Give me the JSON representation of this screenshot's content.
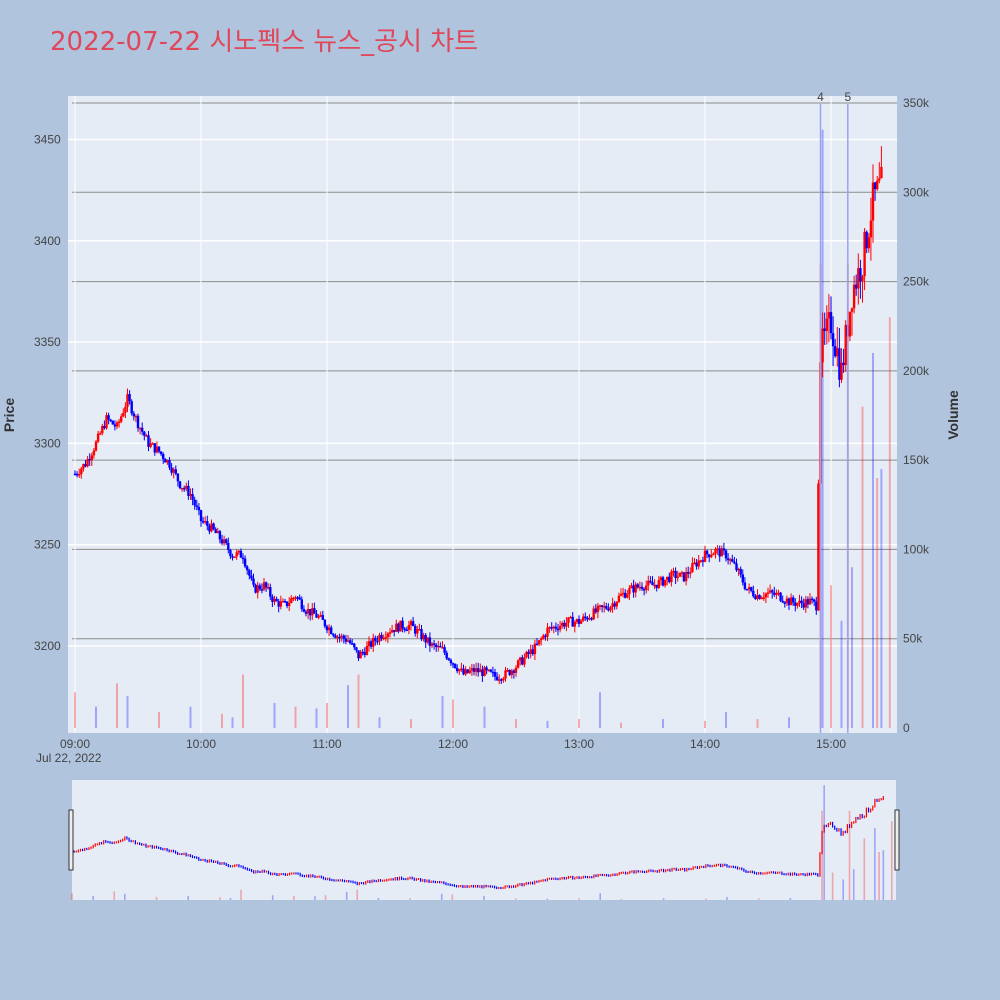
{
  "chart_data": {
    "type": "candlestick",
    "title": "2022-07-22 시노펙스 뉴스_공시 차트",
    "ylabel": "Price",
    "y2label": "Volume",
    "date_label": "Jul 22, 2022",
    "x_ticks": [
      "09:00",
      "10:00",
      "11:00",
      "12:00",
      "13:00",
      "14:00",
      "15:00"
    ],
    "y_ticks": [
      3200,
      3250,
      3300,
      3350,
      3400,
      3450
    ],
    "y2_ticks": [
      "0",
      "50k",
      "100k",
      "150k",
      "200k",
      "250k",
      "300k",
      "350k"
    ],
    "ylim": [
      3150,
      3470
    ],
    "y2lim": [
      0,
      350000
    ],
    "news_markers": [
      {
        "label": "4",
        "time": "14:55"
      },
      {
        "label": "5",
        "time": "15:08"
      }
    ],
    "up_color": "#ff0000",
    "down_color": "#0000ff",
    "price_path": [
      [
        "09:00",
        3285
      ],
      [
        "09:05",
        3290
      ],
      [
        "09:10",
        3300
      ],
      [
        "09:15",
        3312
      ],
      [
        "09:20",
        3308
      ],
      [
        "09:25",
        3322
      ],
      [
        "09:30",
        3310
      ],
      [
        "09:35",
        3300
      ],
      [
        "09:40",
        3296
      ],
      [
        "09:45",
        3290
      ],
      [
        "09:50",
        3280
      ],
      [
        "09:55",
        3275
      ],
      [
        "10:00",
        3262
      ],
      [
        "10:05",
        3258
      ],
      [
        "10:10",
        3252
      ],
      [
        "10:15",
        3245
      ],
      [
        "10:20",
        3245
      ],
      [
        "10:25",
        3228
      ],
      [
        "10:30",
        3230
      ],
      [
        "10:35",
        3222
      ],
      [
        "10:40",
        3220
      ],
      [
        "10:45",
        3225
      ],
      [
        "10:50",
        3218
      ],
      [
        "10:55",
        3215
      ],
      [
        "11:00",
        3210
      ],
      [
        "11:05",
        3205
      ],
      [
        "11:10",
        3203
      ],
      [
        "11:15",
        3195
      ],
      [
        "11:20",
        3200
      ],
      [
        "11:25",
        3205
      ],
      [
        "11:30",
        3208
      ],
      [
        "11:35",
        3210
      ],
      [
        "11:40",
        3210
      ],
      [
        "11:45",
        3205
      ],
      [
        "11:50",
        3200
      ],
      [
        "11:55",
        3198
      ],
      [
        "12:00",
        3192
      ],
      [
        "12:05",
        3186
      ],
      [
        "12:10",
        3188
      ],
      [
        "12:15",
        3187
      ],
      [
        "12:20",
        3185
      ],
      [
        "12:25",
        3186
      ],
      [
        "12:30",
        3190
      ],
      [
        "12:35",
        3195
      ],
      [
        "12:40",
        3200
      ],
      [
        "12:45",
        3208
      ],
      [
        "12:50",
        3210
      ],
      [
        "12:55",
        3212
      ],
      [
        "13:00",
        3212
      ],
      [
        "13:05",
        3215
      ],
      [
        "13:10",
        3218
      ],
      [
        "13:15",
        3220
      ],
      [
        "13:20",
        3225
      ],
      [
        "13:25",
        3228
      ],
      [
        "13:30",
        3230
      ],
      [
        "13:35",
        3230
      ],
      [
        "13:40",
        3232
      ],
      [
        "13:45",
        3235
      ],
      [
        "13:50",
        3234
      ],
      [
        "13:55",
        3240
      ],
      [
        "14:00",
        3245
      ],
      [
        "14:05",
        3247
      ],
      [
        "14:10",
        3245
      ],
      [
        "14:15",
        3238
      ],
      [
        "14:20",
        3228
      ],
      [
        "14:25",
        3225
      ],
      [
        "14:30",
        3226
      ],
      [
        "14:35",
        3225
      ],
      [
        "14:40",
        3222
      ],
      [
        "14:45",
        3221
      ],
      [
        "14:50",
        3222
      ],
      [
        "14:53",
        3220
      ],
      [
        "14:55",
        3345
      ],
      [
        "15:00",
        3360
      ],
      [
        "15:05",
        3335
      ],
      [
        "15:10",
        3375
      ],
      [
        "15:15",
        3390
      ],
      [
        "15:20",
        3420
      ],
      [
        "15:24",
        3428
      ]
    ],
    "volume_bars": [
      [
        "09:00",
        20000
      ],
      [
        "09:10",
        12000
      ],
      [
        "09:20",
        25000
      ],
      [
        "09:25",
        18000
      ],
      [
        "09:40",
        9000
      ],
      [
        "09:55",
        12000
      ],
      [
        "10:10",
        8000
      ],
      [
        "10:15",
        6000
      ],
      [
        "10:20",
        30000
      ],
      [
        "10:35",
        14000
      ],
      [
        "10:45",
        12000
      ],
      [
        "10:55",
        11000
      ],
      [
        "11:00",
        14000
      ],
      [
        "11:10",
        24000
      ],
      [
        "11:15",
        30000
      ],
      [
        "11:25",
        6000
      ],
      [
        "11:40",
        5000
      ],
      [
        "11:55",
        18000
      ],
      [
        "12:00",
        16000
      ],
      [
        "12:15",
        12000
      ],
      [
        "12:30",
        5000
      ],
      [
        "12:45",
        4000
      ],
      [
        "13:00",
        5000
      ],
      [
        "13:10",
        20000
      ],
      [
        "13:20",
        3000
      ],
      [
        "13:40",
        5000
      ],
      [
        "14:00",
        4000
      ],
      [
        "14:10",
        9000
      ],
      [
        "14:25",
        5000
      ],
      [
        "14:40",
        6000
      ],
      [
        "14:55",
        260000
      ],
      [
        "14:56",
        335000
      ],
      [
        "15:00",
        80000
      ],
      [
        "15:05",
        60000
      ],
      [
        "15:08",
        260000
      ],
      [
        "15:10",
        90000
      ],
      [
        "15:15",
        180000
      ],
      [
        "15:20",
        210000
      ],
      [
        "15:22",
        140000
      ],
      [
        "15:24",
        145000
      ],
      [
        "15:28",
        230000
      ]
    ]
  }
}
